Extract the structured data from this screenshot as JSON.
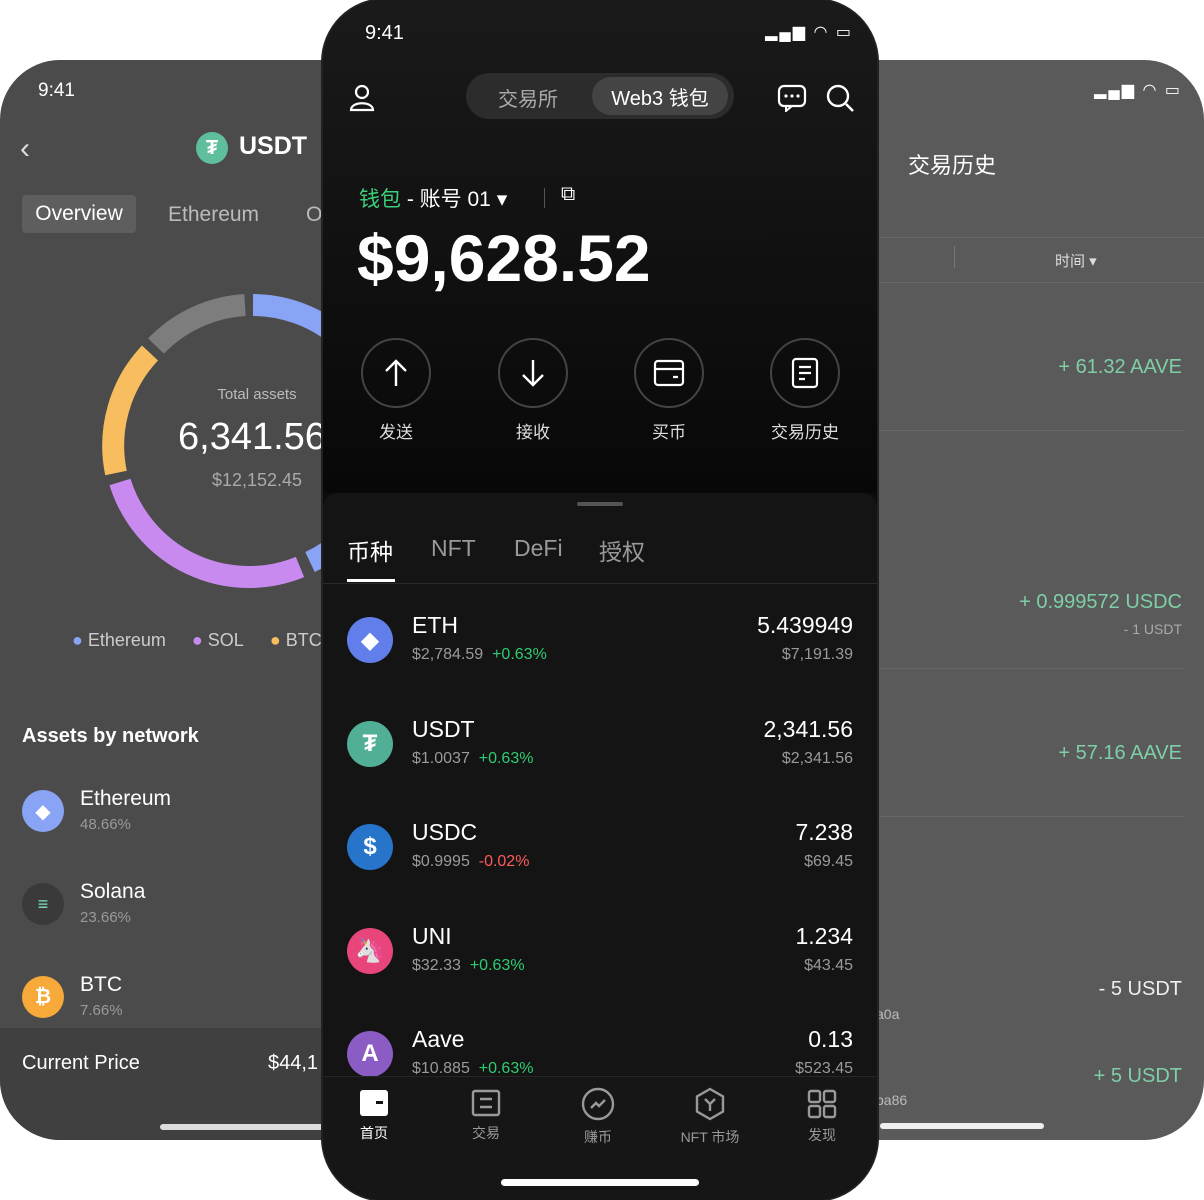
{
  "left_screen": {
    "time": "9:41",
    "title": "USDT",
    "tabs": [
      {
        "label": "Overview",
        "active": true
      },
      {
        "label": "Ethereum"
      },
      {
        "label": "O"
      }
    ],
    "donut": {
      "label": "Total assets",
      "value": "6,341.56",
      "fiat": "$12,152.45",
      "colors": {
        "ethereum": "#8aa4f5",
        "sol": "#c98af0",
        "btc": "#f7bd5f",
        "other": "#7d7d7d"
      }
    },
    "legend": [
      "Ethereum",
      "SOL",
      "BTC"
    ],
    "section_title": "Assets by network",
    "networks": [
      {
        "name": "Ethereum",
        "pct": "48.66%"
      },
      {
        "name": "Solana",
        "pct": "23.66%"
      },
      {
        "name": "BTC",
        "pct": "7.66%"
      }
    ],
    "price_label": "Current Price",
    "price_value": "$44,1"
  },
  "center_screen": {
    "time": "9:41",
    "mode_tabs": [
      {
        "label": "交易所"
      },
      {
        "label": "Web3 钱包",
        "active": true
      }
    ],
    "wallet_label": "钱包",
    "account": " - 账号 01",
    "balance": "$9,628.52",
    "actions": [
      {
        "label": "发送",
        "icon": "arrow-up"
      },
      {
        "label": "接收",
        "icon": "arrow-down"
      },
      {
        "label": "买币",
        "icon": "card"
      },
      {
        "label": "交易历史",
        "icon": "document"
      }
    ],
    "asset_tabs": [
      {
        "label": "币种",
        "active": true
      },
      {
        "label": "NFT"
      },
      {
        "label": "DeFi"
      },
      {
        "label": "授权"
      }
    ],
    "assets": [
      {
        "symbol": "ETH",
        "price": "$2,784.59",
        "change": "+0.63%",
        "dir": "up",
        "amount": "5.439949",
        "value": "$7,191.39",
        "color": "#627eea"
      },
      {
        "symbol": "USDT",
        "price": "$1.0037",
        "change": "+0.63%",
        "dir": "up",
        "amount": "2,341.56",
        "value": "$2,341.56",
        "color": "#50af95"
      },
      {
        "symbol": "USDC",
        "price": "$0.9995",
        "change": "-0.02%",
        "dir": "down",
        "amount": "7.238",
        "value": "$69.45",
        "color": "#2775ca"
      },
      {
        "symbol": "UNI",
        "price": "$32.33",
        "change": "+0.63%",
        "dir": "up",
        "amount": "1.234",
        "value": "$43.45",
        "color": "#e8457a"
      },
      {
        "symbol": "Aave",
        "price": "$10.885",
        "change": "+0.63%",
        "dir": "up",
        "amount": "0.13",
        "value": "$523.45",
        "color": "#8b5cc4"
      }
    ],
    "bottom_nav": [
      {
        "label": "首页",
        "active": true
      },
      {
        "label": "交易"
      },
      {
        "label": "赚币"
      },
      {
        "label": "NFT 市场"
      },
      {
        "label": "发现"
      }
    ]
  },
  "right_screen": {
    "title": "交易历史",
    "filter": "时间",
    "entries": [
      {
        "amount": "+ 61.32 AAVE",
        "type": "in"
      },
      {
        "amount": "+ 0.999572 USDC",
        "secondary": "- 1 USDT",
        "type": "in"
      },
      {
        "amount": "+ 57.16 AAVE",
        "type": "in"
      },
      {
        "amount": "- 5 USDT",
        "type": "out",
        "address": "a0a"
      },
      {
        "amount": "+ 5 USDT",
        "type": "in",
        "address": "ba86"
      }
    ]
  }
}
